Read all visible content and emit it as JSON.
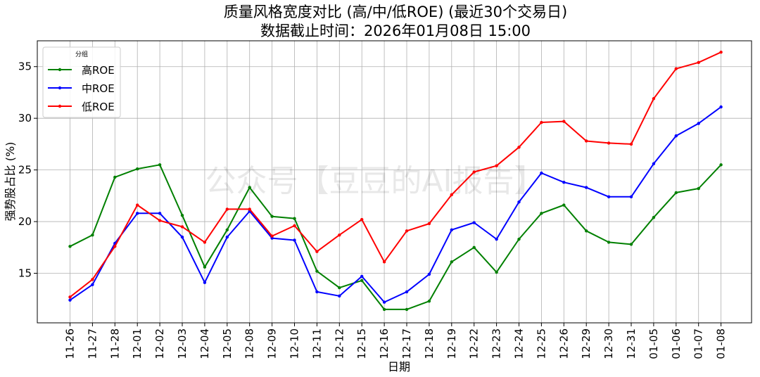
{
  "chart_data": {
    "type": "line",
    "title": "质量风格宽度对比 (高/中/低ROE) (最近30个交易日)",
    "subtitle": "数据截止时间：2026年01月08日 15:00",
    "xlabel": "日期",
    "ylabel": "强势股占比 (%)",
    "ylim": [
      10.2,
      37.5
    ],
    "yticks": [
      15,
      20,
      25,
      30,
      35
    ],
    "grid": true,
    "legend": {
      "title": "分组",
      "placement": "top-left"
    },
    "watermark": "公众号【豆豆的AI报告】",
    "categories": [
      "11-26",
      "11-27",
      "11-28",
      "12-01",
      "12-02",
      "12-03",
      "12-04",
      "12-05",
      "12-08",
      "12-09",
      "12-10",
      "12-11",
      "12-12",
      "12-15",
      "12-16",
      "12-17",
      "12-18",
      "12-19",
      "12-22",
      "12-23",
      "12-24",
      "12-25",
      "12-26",
      "12-29",
      "12-30",
      "12-31",
      "01-05",
      "01-06",
      "01-07",
      "01-08"
    ],
    "series": [
      {
        "name": "高ROE",
        "color": "#008000",
        "values": [
          17.6,
          18.7,
          24.3,
          25.1,
          25.5,
          20.6,
          15.6,
          19.2,
          23.3,
          20.5,
          20.3,
          15.2,
          13.6,
          14.3,
          11.5,
          11.5,
          12.3,
          16.1,
          17.5,
          15.1,
          18.3,
          20.8,
          21.6,
          19.1,
          18.0,
          17.8,
          20.4,
          22.8,
          23.2,
          25.5
        ]
      },
      {
        "name": "中ROE",
        "color": "#0000ff",
        "values": [
          12.4,
          13.9,
          17.9,
          20.8,
          20.8,
          18.5,
          14.1,
          18.5,
          21.0,
          18.4,
          18.2,
          13.2,
          12.8,
          14.7,
          12.2,
          13.2,
          14.9,
          19.2,
          19.9,
          18.3,
          21.9,
          24.7,
          23.8,
          23.3,
          22.4,
          22.4,
          25.6,
          28.3,
          29.5,
          31.1
        ]
      },
      {
        "name": "低ROE",
        "color": "#ff0000",
        "values": [
          12.7,
          14.4,
          17.6,
          21.6,
          20.1,
          19.5,
          18.0,
          21.2,
          21.2,
          18.6,
          19.6,
          17.1,
          18.7,
          20.2,
          16.1,
          19.1,
          19.8,
          22.6,
          24.8,
          25.4,
          27.2,
          29.6,
          29.7,
          27.8,
          27.6,
          27.5,
          31.9,
          34.8,
          35.4,
          36.4
        ]
      }
    ]
  }
}
